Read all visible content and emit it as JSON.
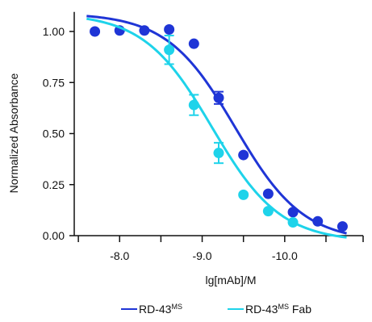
{
  "chart_data": {
    "type": "scatter",
    "title": "",
    "xlabel": "lg[mAb]/M",
    "ylabel": "Normalized Absorbance",
    "x_reversed": true,
    "xlim": [
      -7.45,
      -10.95
    ],
    "ylim": [
      0,
      1.08
    ],
    "xticks": [
      {
        "value": -8.0,
        "label": "-8.0"
      },
      {
        "value": -9.0,
        "label": "-9.0"
      },
      {
        "value": -10.0,
        "label": "-10.0"
      }
    ],
    "xticks_minor": [
      -7.5,
      -8.5,
      -9.5,
      -10.5,
      -10.95
    ],
    "yticks": [
      {
        "value": 0.0,
        "label": "0.00"
      },
      {
        "value": 0.25,
        "label": "0.25"
      },
      {
        "value": 0.5,
        "label": "0.50"
      },
      {
        "value": 0.75,
        "label": "0.75"
      },
      {
        "value": 1.0,
        "label": "1.00"
      }
    ],
    "grid": false,
    "legend_position": "bottom",
    "series": [
      {
        "name": "RD-43",
        "name_superscript": "MS",
        "color": "#1f35d6",
        "points": [
          {
            "x": -7.7,
            "y": 1.0
          },
          {
            "x": -8.0,
            "y": 1.005
          },
          {
            "x": -8.3,
            "y": 1.005
          },
          {
            "x": -8.6,
            "y": 1.01
          },
          {
            "x": -8.9,
            "y": 0.94
          },
          {
            "x": -9.2,
            "y": 0.675,
            "err": 0.03
          },
          {
            "x": -9.5,
            "y": 0.395
          },
          {
            "x": -9.8,
            "y": 0.205
          },
          {
            "x": -10.1,
            "y": 0.115
          },
          {
            "x": -10.4,
            "y": 0.07
          },
          {
            "x": -10.7,
            "y": 0.045
          }
        ],
        "fit": {
          "top": 1.09,
          "bottom": -0.03,
          "logEC50": -9.4,
          "hill": 1.05
        }
      },
      {
        "name": "RD-43",
        "name_superscript": "MS",
        "name_suffix": " Fab",
        "color": "#1ed3ea",
        "points": [
          {
            "x": -8.6,
            "y": 0.91,
            "err": 0.07
          },
          {
            "x": -8.9,
            "y": 0.64,
            "err": 0.05
          },
          {
            "x": -9.2,
            "y": 0.405,
            "err": 0.05
          },
          {
            "x": -9.5,
            "y": 0.2
          },
          {
            "x": -9.8,
            "y": 0.12
          },
          {
            "x": -10.1,
            "y": 0.065
          }
        ],
        "fit": {
          "top": 1.09,
          "bottom": -0.03,
          "logEC50": -9.12,
          "hill": 1.05
        }
      }
    ]
  }
}
